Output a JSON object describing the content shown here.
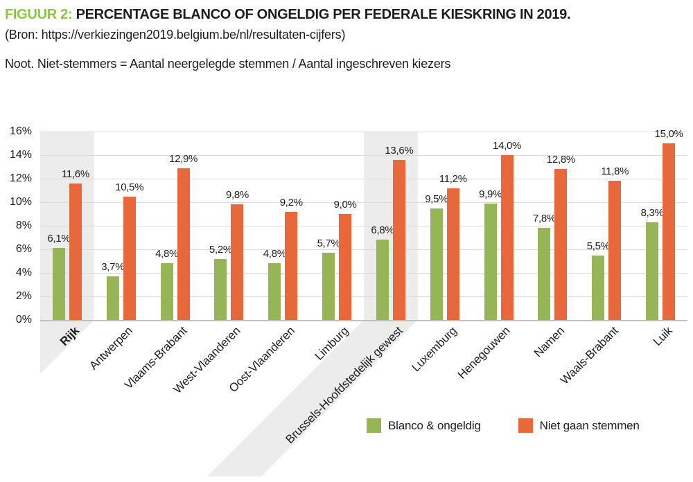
{
  "header": {
    "figure_label": "FIGUUR 2:",
    "title_rest": " PERCENTAGE BLANCO OF ONGELDIG PER FEDERALE KIESKRING IN 2019.",
    "source": "(Bron: https://verkiezingen2019.belgium.be/nl/resultaten-cijfers)",
    "note": "Noot. Niet-stemmers = Aantal neergelegde stemmen / Aantal ingeschreven kiezers"
  },
  "colors": {
    "green": "#95B556",
    "orange": "#E8683C",
    "title_green": "#8CC63F",
    "band": "#ECECEC",
    "grid": "#D9D9D9",
    "axis": "#C0C0C0",
    "text": "#1D1D1B"
  },
  "chart_data": {
    "type": "bar",
    "title": "FIGUUR 2: PERCENTAGE BLANCO OF ONGELDIG PER FEDERALE KIESKRING IN 2019.",
    "categories": [
      "Rijk",
      "Antwerpen",
      "Vlaams-Brabant",
      "West-Vlaanderen",
      "Oost-Vlaanderen",
      "Limburg",
      "Brussels-Hoofdstedelijk gewest",
      "Luxemburg",
      "Henegouwen",
      "Namen",
      "Waals-Brabant",
      "Luik"
    ],
    "series": [
      {
        "name": "Blanco & ongeldig",
        "color_key": "green",
        "values": [
          6.1,
          3.7,
          4.8,
          5.2,
          4.8,
          5.7,
          6.8,
          9.5,
          9.9,
          7.8,
          5.5,
          8.3
        ],
        "labels": [
          "6,1%",
          "3,7%",
          "4,8%",
          "5,2%",
          "4,8%",
          "5,7%",
          "6,8%",
          "9,5%",
          "9,9%",
          "7,8%",
          "5,5%",
          "8,3%"
        ]
      },
      {
        "name": "Niet gaan stemmen",
        "color_key": "orange",
        "values": [
          11.6,
          10.5,
          12.9,
          9.8,
          9.2,
          9.0,
          13.6,
          11.2,
          14.0,
          12.8,
          11.8,
          15.0
        ],
        "labels": [
          "11,6%",
          "10,5%",
          "12,9%",
          "9,8%",
          "9,2%",
          "9,0%",
          "13,6%",
          "11,2%",
          "14,0%",
          "12,8%",
          "11,8%",
          "15,0%"
        ]
      }
    ],
    "highlighted_categories": [
      "Rijk",
      "Brussels-Hoofdstedelijk gewest"
    ],
    "bold_categories": [
      "Rijk"
    ],
    "y_ticks": [
      "0%",
      "2%",
      "4%",
      "6%",
      "8%",
      "10%",
      "12%",
      "14%",
      "16%"
    ],
    "ylim": [
      0,
      16
    ],
    "grid": true,
    "legend_position": "bottom"
  }
}
